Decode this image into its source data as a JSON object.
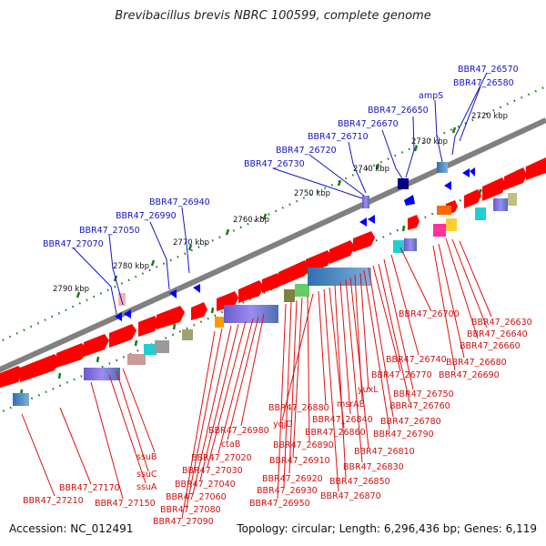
{
  "title": "Brevibacillus brevis NBRC 100599, complete genome",
  "footer": {
    "accession": "Accession: NC_012491",
    "summary": "Topology: circular; Length: 6,296,436 bp; Genes: 6,119"
  },
  "colors": {
    "backbone": "#808080",
    "forward_gene": "#ff0000",
    "reverse_gene": "#0000ff",
    "forward_label": "#d01010",
    "reverse_label": "#1414c8",
    "tick_green": "#1a7a1a"
  },
  "scale_labels": [
    "2720 kbp",
    "2730 kbp",
    "2740 kbp",
    "2750 kbp",
    "2760 kbp",
    "2770 kbp",
    "2780 kbp",
    "2790 kbp"
  ],
  "top_labels": [
    "BBR47_26570",
    "BBR47_26580",
    "ampS",
    "BBR47_26650",
    "BBR47_26670",
    "BBR47_26710",
    "BBR47_26720",
    "BBR47_26730",
    "BBR47_26940",
    "BBR47_26990",
    "BBR47_27050",
    "BBR47_27070"
  ],
  "bottom_labels": [
    "BBR47_26630",
    "BBR47_26640",
    "BBR47_26660",
    "BBR47_26680",
    "BBR47_26690",
    "BBR47_26700",
    "BBR47_26740",
    "BBR47_26750",
    "BBR47_26760",
    "BBR47_26770",
    "BBR47_26780",
    "BBR47_26790",
    "yuxL",
    "msrAB",
    "BBR47_26810",
    "BBR47_26830",
    "BBR47_26840",
    "BBR47_26850",
    "BBR47_26860",
    "BBR47_26870",
    "BBR47_26880",
    "yqjD",
    "BBR47_26890",
    "BBR47_26910",
    "BBR47_26920",
    "BBR47_26930",
    "BBR47_26950",
    "BBR47_26980",
    "ctaB",
    "BBR47_27020",
    "BBR47_27030",
    "BBR47_27040",
    "BBR47_27060",
    "BBR47_27080",
    "BBR47_27090",
    "ssuB",
    "ssuC",
    "ssuA",
    "BBR47_27150",
    "BBR47_27170",
    "BBR47_27210"
  ]
}
